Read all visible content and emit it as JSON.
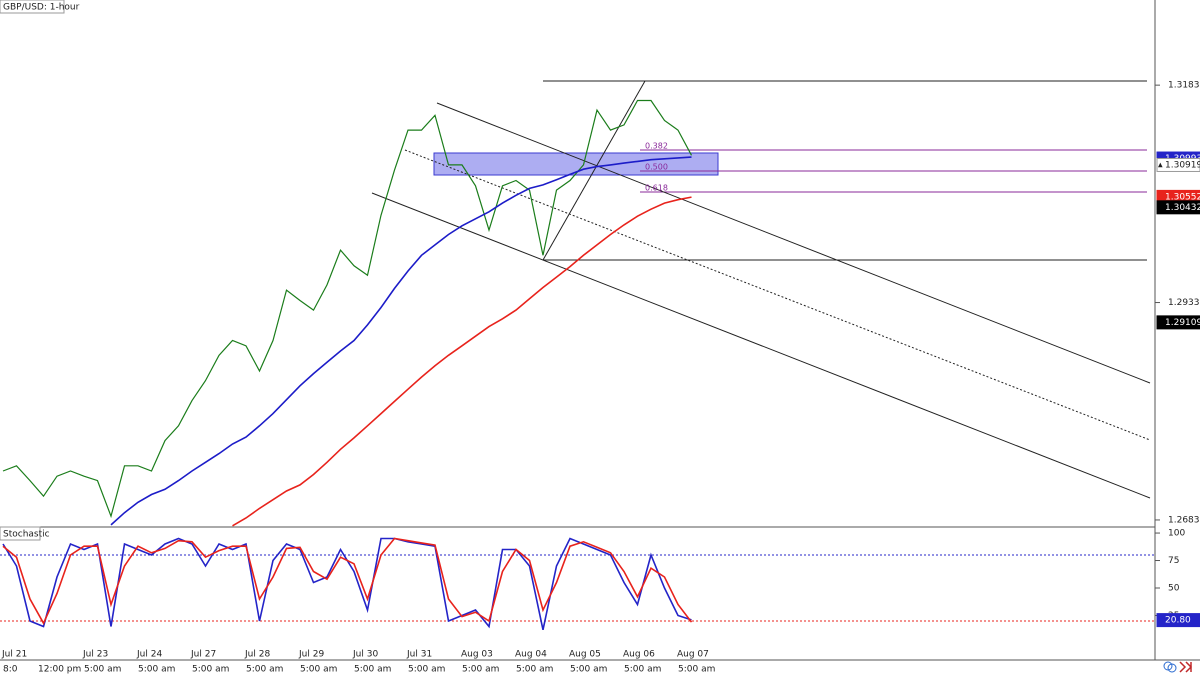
{
  "chart_data": [
    {
      "type": "line",
      "title": "GBP/USD: 1-hour",
      "categories": [
        "Jul 21",
        null,
        null,
        null,
        null,
        null,
        "Jul 23",
        null,
        null,
        null,
        "Jul 24",
        null,
        null,
        null,
        "Jul 27",
        null,
        null,
        null,
        "Jul 28",
        null,
        null,
        null,
        "Jul 29",
        null,
        null,
        null,
        "Jul 30",
        null,
        null,
        null,
        "Jul 31",
        null,
        null,
        null,
        "Aug 03",
        null,
        null,
        null,
        "Aug 04",
        null,
        null,
        null,
        "Aug 05",
        null,
        null,
        null,
        "Aug 06",
        null,
        null,
        null,
        "Aug 07",
        null
      ],
      "x_times": [
        "8:0",
        null,
        null,
        "12:00 pm",
        null,
        null,
        "5:00 am",
        null,
        null,
        null,
        "5:00 am",
        null,
        null,
        null,
        "5:00 am",
        null,
        null,
        null,
        "5:00 am",
        null,
        null,
        null,
        "5:00 am",
        null,
        null,
        null,
        "5:00 am",
        null,
        null,
        null,
        "5:00 am",
        null,
        null,
        null,
        "5:00 am",
        null,
        null,
        null,
        "5:00 am",
        null,
        null,
        null,
        "5:00 am",
        null,
        null,
        null,
        "5:00 am",
        null,
        null,
        null,
        "5:00 am",
        null
      ],
      "series": [
        {
          "color": "#1b7d1b",
          "values": [
            1.274,
            1.2746,
            1.2729,
            1.2711,
            1.2734,
            1.274,
            1.2734,
            1.2729,
            1.2688,
            1.2746,
            1.2746,
            1.274,
            1.2775,
            1.2792,
            1.2821,
            1.2844,
            1.2873,
            1.289,
            1.2884,
            1.2855,
            1.289,
            1.2948,
            1.2936,
            1.2925,
            1.2954,
            1.2994,
            1.2976,
            1.2965,
            1.3034,
            1.3086,
            1.3132,
            1.3132,
            1.3149,
            1.3092,
            1.3092,
            1.3068,
            1.3017,
            1.3068,
            1.3074,
            1.3063,
            1.2988,
            1.3063,
            1.3074,
            1.3092,
            1.3155,
            1.3132,
            1.3138,
            1.3166,
            1.3166,
            1.3143,
            1.3132,
            1.3103
          ]
        },
        {
          "color": "#1c1cc8",
          "values": [
            null,
            null,
            null,
            null,
            null,
            null,
            null,
            null,
            1.2678,
            1.2692,
            1.2704,
            1.2713,
            1.2719,
            1.2729,
            1.274,
            1.275,
            1.276,
            1.2771,
            1.2779,
            1.2792,
            1.2806,
            1.2822,
            1.2838,
            1.2852,
            1.2865,
            1.2878,
            1.289,
            1.2908,
            1.2928,
            1.295,
            1.297,
            1.2988,
            1.3,
            1.3012,
            1.3022,
            1.303,
            1.3038,
            1.3048,
            1.3057,
            1.3065,
            1.3069,
            1.3075,
            1.3081,
            1.3087,
            1.309,
            1.3092,
            1.3094,
            1.3096,
            1.3098,
            1.3099,
            1.31,
            1.3101
          ]
        },
        {
          "color": "#e8231c",
          "values": [
            null,
            null,
            null,
            null,
            null,
            null,
            null,
            null,
            null,
            null,
            null,
            null,
            null,
            null,
            null,
            null,
            null,
            1.2677,
            1.2686,
            1.2697,
            1.2707,
            1.2717,
            1.2724,
            1.2736,
            1.275,
            1.2765,
            1.2778,
            1.2792,
            1.2806,
            1.282,
            1.2834,
            1.2848,
            1.2861,
            1.2873,
            1.2884,
            1.2895,
            1.2906,
            1.2915,
            1.2925,
            1.2938,
            1.2951,
            1.2963,
            1.2975,
            1.2988,
            1.3,
            1.3012,
            1.3023,
            1.3033,
            1.3041,
            1.3048,
            1.3052,
            1.3055
          ]
        }
      ],
      "ylim": [
        1.26756,
        1.32816
      ],
      "yticks": [
        1.26837,
        1.29337,
        1.31837
      ],
      "price_labels": [
        {
          "value": 1.30993,
          "color": "#2424c8"
        },
        {
          "value": 1.30919,
          "color": "#ffffff"
        },
        {
          "value": 1.30552,
          "color": "#e8231c"
        },
        {
          "value": 1.30432,
          "color": "#000000"
        },
        {
          "value": 1.29109,
          "color": "#000000"
        }
      ],
      "fib_labels": [
        "0.382",
        "0.500",
        "0.618"
      ]
    },
    {
      "type": "line",
      "title": "Stochastic",
      "series": [
        {
          "color": "#2424c8",
          "values": [
            90,
            70,
            20,
            15,
            60,
            90,
            85,
            90,
            15,
            90,
            85,
            80,
            90,
            95,
            90,
            70,
            90,
            85,
            90,
            20,
            75,
            90,
            85,
            55,
            60,
            85,
            65,
            30,
            95,
            95,
            92,
            90,
            88,
            20,
            25,
            30,
            15,
            85,
            85,
            70,
            12,
            70,
            95,
            90,
            85,
            80,
            55,
            35,
            80,
            50,
            25,
            21
          ]
        },
        {
          "color": "#e8231c",
          "values": [
            88,
            78,
            40,
            18,
            45,
            80,
            88,
            88,
            35,
            70,
            88,
            82,
            86,
            93,
            92,
            78,
            84,
            88,
            88,
            40,
            60,
            86,
            87,
            65,
            58,
            78,
            72,
            40,
            80,
            95,
            93,
            91,
            89,
            40,
            24,
            28,
            20,
            65,
            85,
            75,
            30,
            55,
            88,
            92,
            87,
            82,
            65,
            42,
            68,
            60,
            35,
            19
          ]
        }
      ],
      "ylim": [
        -15.5,
        105.5
      ],
      "yticks": [
        100,
        75,
        50,
        25
      ],
      "levels": [
        {
          "value": 80,
          "color": "#2424c8"
        },
        {
          "value": 20,
          "color": "#e8231c"
        }
      ],
      "price_labels": [
        {
          "value": 20.8,
          "label": "20.80",
          "color": "#2424c8"
        }
      ]
    }
  ]
}
